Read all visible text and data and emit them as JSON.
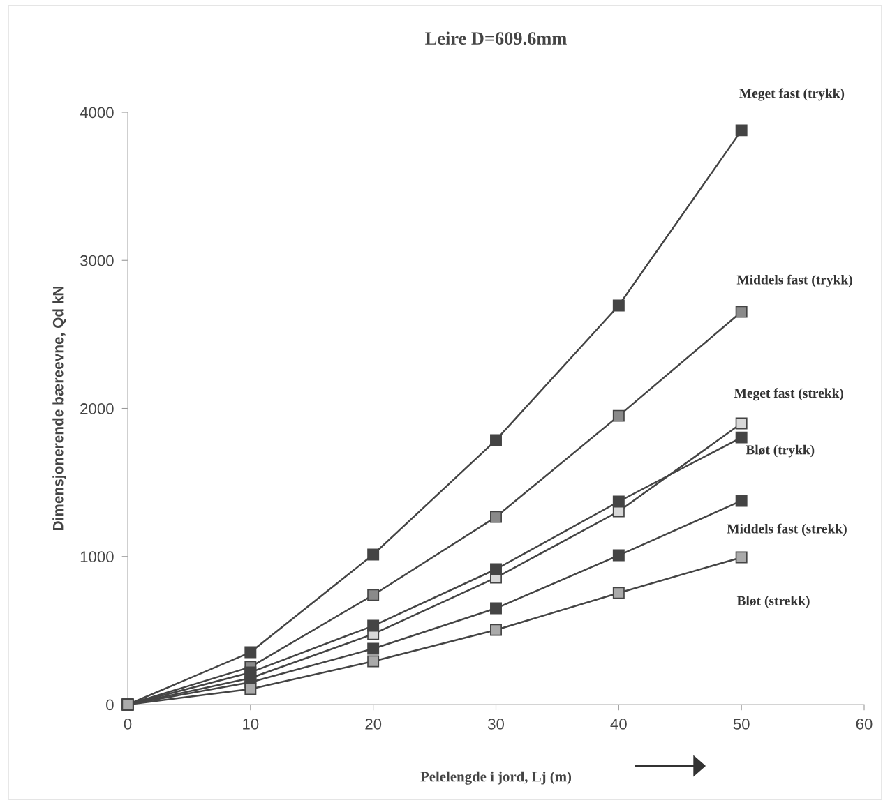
{
  "chart_data": {
    "type": "line",
    "title": "Leire D=609.6mm",
    "xlabel": "Pelelengde i jord, Lj (m)",
    "ylabel": "Dimensjonerende bæreevne, Qd kN",
    "x": [
      0,
      10,
      20,
      30,
      40,
      50
    ],
    "series": [
      {
        "name": "Meget fast (trykk)",
        "color": "#444444",
        "values": [
          0,
          353,
          1013,
          1786,
          2695,
          3878
        ]
      },
      {
        "name": "Middels fast (trykk)",
        "color": "#8a8a8a",
        "values": [
          0,
          254,
          740,
          1267,
          1950,
          2652
        ]
      },
      {
        "name": "Meget fast (strekk)",
        "color": "#d8d8d8",
        "values": [
          0,
          179,
          476,
          857,
          1305,
          1899
        ]
      },
      {
        "name": "Bløt (trykk)",
        "color": "#444444",
        "values": [
          0,
          217,
          532,
          914,
          1371,
          1804
        ]
      },
      {
        "name": "Middels fast (strekk)",
        "color": "#444444",
        "values": [
          0,
          151,
          377,
          650,
          1008,
          1376
        ]
      },
      {
        "name": "Bløt (strekk)",
        "color": "#aaaaaa",
        "values": [
          0,
          105,
          292,
          504,
          754,
          994
        ]
      }
    ],
    "xlim": [
      0,
      60
    ],
    "xticks": [
      0,
      10,
      20,
      30,
      40,
      50,
      60
    ],
    "ylim": [
      0,
      4000
    ],
    "yticks": [
      0,
      1000,
      2000,
      3000,
      4000
    ],
    "grid": false,
    "legend": false,
    "marker": "square",
    "line_style": "solid"
  }
}
